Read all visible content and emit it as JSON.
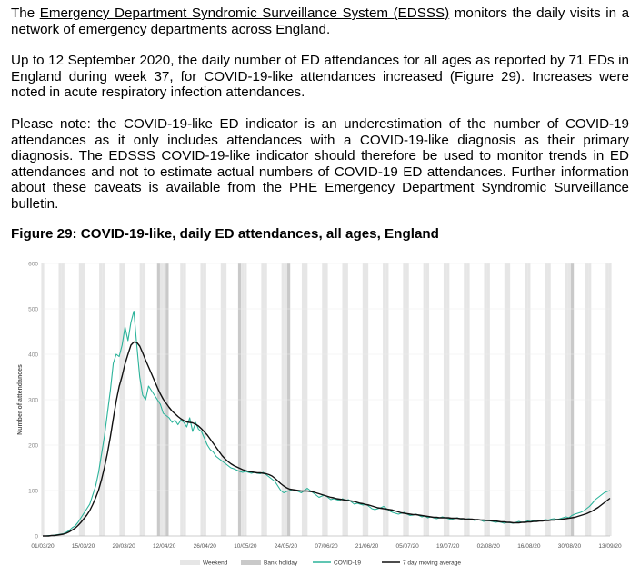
{
  "paragraphs": {
    "p1": {
      "before": "The ",
      "link": "Emergency Department Syndromic Surveillance System (EDSSS)",
      "after": " monitors the daily visits in a network of emergency departments across England."
    },
    "p2": "Up to 12 September 2020, the daily number of ED attendances for all ages as reported by 71 EDs in England during week 37, for COVID-19-like attendances increased (Figure 29). Increases were noted in acute respiratory infection attendances.",
    "p3": {
      "before": "Please note: the COVID-19-like ED indicator is an underestimation of the number of COVID-19 attendances as it only includes attendances with a COVID-19-like diagnosis as their primary diagnosis. The EDSSS COVID-19-like indicator should therefore be used to monitor trends in ED attendances and not to estimate actual numbers of COVID-19 ED attendances. Further information about these caveats is available from the ",
      "link": "PHE Emergency Department Syndromic Surveillance",
      "after": " bulletin."
    }
  },
  "figure_title": "Figure 29: COVID-19-like, daily ED attendances, all ages, England",
  "colors": {
    "covid_series": "#2bb39a",
    "moving_average": "#111111",
    "weekend_band": "#e6e6e6",
    "bank_holiday_band": "#c9c9c9",
    "gridline": "#eeeeee"
  },
  "chart_data": {
    "type": "line",
    "ylabel": "Number of attendances",
    "ylim": [
      0,
      600
    ],
    "yticks": [
      "0",
      "100",
      "200",
      "300",
      "400",
      "500",
      "600"
    ],
    "x_start": "2020-03-01",
    "x_end": "2020-09-13",
    "x_ticks": [
      "01/03/20",
      "15/03/20",
      "29/03/20",
      "12/04/20",
      "26/04/20",
      "10/05/20",
      "24/05/20",
      "07/06/20",
      "21/06/20",
      "05/07/20",
      "19/07/20",
      "02/08/20",
      "16/08/20",
      "30/08/20",
      "13/09/20"
    ],
    "bank_holidays": [
      "2020-04-10",
      "2020-04-13",
      "2020-05-08",
      "2020-05-25",
      "2020-08-31"
    ],
    "legend": [
      "Weekend",
      "Bank holiday",
      "COVID-19",
      "7 day moving average"
    ],
    "series": [
      {
        "name": "COVID-19",
        "values": [
          0,
          0,
          1,
          1,
          2,
          3,
          4,
          5,
          8,
          12,
          18,
          22,
          30,
          40,
          50,
          60,
          70,
          90,
          110,
          140,
          180,
          220,
          270,
          320,
          380,
          400,
          395,
          420,
          460,
          430,
          470,
          495,
          420,
          350,
          310,
          300,
          330,
          320,
          310,
          300,
          290,
          270,
          265,
          260,
          250,
          255,
          245,
          255,
          250,
          240,
          260,
          230,
          250,
          235,
          230,
          215,
          200,
          190,
          185,
          175,
          170,
          165,
          160,
          155,
          150,
          148,
          145,
          142,
          140,
          142,
          140,
          138,
          140,
          138,
          137,
          140,
          135,
          130,
          125,
          120,
          110,
          100,
          95,
          98,
          100,
          102,
          100,
          98,
          95,
          100,
          105,
          100,
          95,
          90,
          85,
          88,
          90,
          85,
          80,
          82,
          80,
          78,
          82,
          78,
          80,
          75,
          70,
          72,
          70,
          68,
          70,
          65,
          60,
          58,
          60,
          62,
          65,
          60,
          55,
          52,
          50,
          48,
          50,
          52,
          48,
          45,
          46,
          48,
          45,
          42,
          44,
          40,
          42,
          40,
          38,
          40,
          42,
          40,
          38,
          36,
          38,
          40,
          38,
          35,
          37,
          38,
          36,
          34,
          36,
          35,
          32,
          34,
          33,
          32,
          30,
          31,
          30,
          28,
          30,
          29,
          28,
          30,
          32,
          30,
          31,
          33,
          32,
          34,
          33,
          35,
          34,
          36,
          35,
          37,
          38,
          36,
          38,
          40,
          42,
          40,
          45,
          48,
          50,
          52,
          55,
          60,
          65,
          72,
          80,
          85,
          90,
          95,
          98,
          100
        ]
      },
      {
        "name": "7 day moving average",
        "values": [
          0,
          0,
          0,
          1,
          1,
          2,
          3,
          4,
          6,
          9,
          13,
          17,
          23,
          30,
          38,
          46,
          56,
          69,
          84,
          101,
          124,
          151,
          182,
          218,
          258,
          297,
          329,
          352,
          379,
          400,
          420,
          427,
          426,
          418,
          403,
          387,
          372,
          357,
          342,
          327,
          313,
          301,
          292,
          283,
          275,
          269,
          263,
          258,
          254,
          251,
          250,
          249,
          246,
          242,
          236,
          229,
          222,
          213,
          204,
          195,
          186,
          177,
          170,
          164,
          159,
          155,
          152,
          149,
          146,
          144,
          142,
          141,
          140,
          139,
          139,
          138,
          137,
          135,
          132,
          127,
          121,
          115,
          110,
          106,
          103,
          102,
          101,
          100,
          99,
          99,
          99,
          98,
          97,
          95,
          93,
          91,
          89,
          87,
          85,
          84,
          82,
          81,
          80,
          79,
          78,
          77,
          76,
          74,
          72,
          71,
          69,
          68,
          66,
          64,
          62,
          61,
          60,
          59,
          58,
          57,
          55,
          53,
          51,
          50,
          49,
          48,
          47,
          47,
          46,
          45,
          44,
          43,
          42,
          41,
          41,
          40,
          40,
          40,
          40,
          39,
          39,
          39,
          38,
          38,
          37,
          37,
          37,
          36,
          36,
          35,
          35,
          34,
          34,
          33,
          33,
          32,
          31,
          31,
          30,
          30,
          29,
          29,
          29,
          30,
          30,
          31,
          31,
          32,
          32,
          33,
          33,
          34,
          34,
          35,
          35,
          36,
          36,
          37,
          38,
          39,
          40,
          41,
          43,
          45,
          47,
          49,
          52,
          55,
          59,
          63,
          68,
          73,
          78,
          83
        ]
      }
    ]
  }
}
